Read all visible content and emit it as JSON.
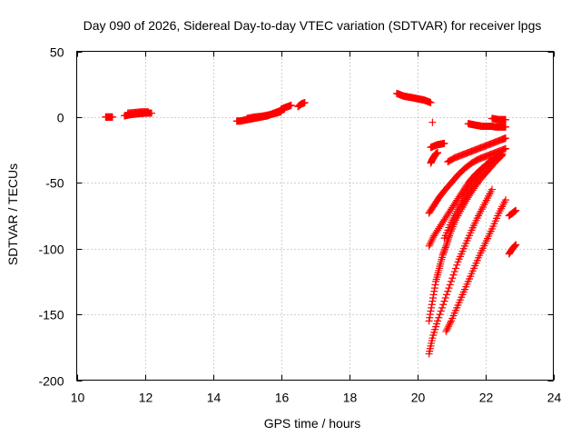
{
  "chart_data": {
    "type": "scatter",
    "title": "Day 090 of 2026, Sidereal Day-to-day VTEC variation (SDTVAR) for receiver lpgs",
    "xlabel": "GPS time / hours",
    "ylabel": "SDTVAR / TECUs",
    "xlim": [
      10,
      24
    ],
    "ylim": [
      -200,
      50
    ],
    "xticks": [
      10,
      12,
      14,
      16,
      18,
      20,
      22,
      24
    ],
    "yticks": [
      50,
      0,
      -50,
      -100,
      -150,
      -200
    ],
    "grid": true,
    "marker": "plus",
    "color": "#ff0000",
    "series": [
      {
        "name": "s1",
        "x": [
          10.85,
          10.9,
          10.95,
          11.0,
          11.05
        ],
        "y": [
          0,
          0,
          0,
          0,
          0
        ]
      },
      {
        "name": "s2",
        "x": [
          11.4,
          11.5,
          11.6,
          11.7,
          11.8,
          11.9,
          12.0,
          12.1,
          12.2
        ],
        "y": [
          1,
          1.5,
          2,
          2.3,
          2.6,
          2.8,
          3,
          3,
          3
        ]
      },
      {
        "name": "s3",
        "x": [
          11.5,
          11.7,
          11.9,
          12.1
        ],
        "y": [
          3,
          3.5,
          4,
          4
        ]
      },
      {
        "name": "s4",
        "x": [
          14.7,
          14.8,
          14.9,
          15.0,
          15.1,
          15.2,
          15.3,
          15.4,
          15.5,
          15.6,
          15.7,
          15.8,
          15.9,
          16.0,
          16.1
        ],
        "y": [
          -3,
          -3,
          -2.5,
          -2,
          -1.5,
          -1,
          -0.5,
          0,
          0.5,
          1,
          2,
          3,
          4,
          5,
          6
        ]
      },
      {
        "name": "s5",
        "x": [
          15.0,
          15.2,
          15.4,
          15.6,
          15.8,
          16.0
        ],
        "y": [
          -1,
          0,
          0.5,
          1.5,
          2.5,
          4
        ]
      },
      {
        "name": "s6",
        "x": [
          16.0,
          16.1,
          16.2,
          16.3
        ],
        "y": [
          6,
          7,
          8,
          9
        ]
      },
      {
        "name": "s7",
        "x": [
          16.5,
          16.6,
          16.7
        ],
        "y": [
          8,
          10,
          11
        ]
      },
      {
        "name": "s8",
        "x": [
          19.4,
          19.5,
          19.6,
          19.7,
          19.8,
          19.9,
          20.0,
          20.1,
          20.2,
          20.3,
          20.4
        ],
        "y": [
          18,
          17,
          16,
          15.5,
          15,
          14.5,
          14,
          13.5,
          13,
          12,
          11
        ]
      },
      {
        "name": "s9",
        "x": [
          20.45
        ],
        "y": [
          -4
        ]
      },
      {
        "name": "s10",
        "x": [
          21.5,
          21.6,
          21.7,
          21.8,
          21.9,
          22.0,
          22.1,
          22.2,
          22.3,
          22.4,
          22.5,
          22.6
        ],
        "y": [
          -5,
          -5.5,
          -6,
          -6.5,
          -7,
          -7,
          -7,
          -7,
          -7.5,
          -7.5,
          -7.5,
          -7.5
        ]
      },
      {
        "name": "s11",
        "x": [
          22.2,
          22.3,
          22.4,
          22.5,
          22.6
        ],
        "y": [
          -1,
          -1.5,
          -2,
          -2,
          -2
        ]
      },
      {
        "name": "s12",
        "x": [
          20.4,
          20.5,
          20.6,
          20.7,
          20.8
        ],
        "y": [
          -23,
          -22,
          -21,
          -20.5,
          -20
        ]
      },
      {
        "name": "s13",
        "x": [
          20.9,
          21.1,
          21.3,
          21.5,
          21.7,
          21.9,
          22.1,
          22.3,
          22.5,
          22.6
        ],
        "y": [
          -34,
          -31,
          -29,
          -27,
          -25,
          -23,
          -21,
          -19,
          -17,
          -16
        ]
      },
      {
        "name": "s14",
        "x": [
          20.4,
          20.45,
          20.5,
          20.55,
          20.6
        ],
        "y": [
          -35,
          -32,
          -30,
          -28,
          -27
        ]
      },
      {
        "name": "s15",
        "x": [
          20.35,
          20.5,
          20.65,
          20.8,
          21.0,
          21.2,
          21.4,
          21.6,
          21.8,
          22.0,
          22.2,
          22.4,
          22.6
        ],
        "y": [
          -73,
          -67,
          -61,
          -56,
          -50,
          -44,
          -39,
          -35,
          -32,
          -30,
          -28,
          -26,
          -24
        ]
      },
      {
        "name": "s16",
        "x": [
          20.35,
          20.5,
          20.7,
          20.9,
          21.1,
          21.3,
          21.5,
          21.7,
          21.9,
          22.1,
          22.3,
          22.5
        ],
        "y": [
          -98,
          -90,
          -82,
          -74,
          -66,
          -58,
          -50,
          -44,
          -39,
          -35,
          -31,
          -28
        ]
      },
      {
        "name": "s17",
        "x": [
          20.8,
          21.0,
          21.2,
          21.4,
          21.6,
          21.8,
          22.0,
          22.2
        ],
        "y": [
          -92,
          -80,
          -70,
          -60,
          -52,
          -44,
          -37,
          -32
        ]
      },
      {
        "name": "s18",
        "x": [
          20.35,
          20.45,
          20.55,
          20.65,
          20.75,
          20.85,
          20.95,
          21.1,
          21.3,
          21.5,
          21.7,
          21.9,
          22.1,
          22.3,
          22.5
        ],
        "y": [
          -155,
          -140,
          -125,
          -115,
          -105,
          -98,
          -90,
          -80,
          -70,
          -61,
          -53,
          -46,
          -40,
          -34,
          -29
        ]
      },
      {
        "name": "s19",
        "x": [
          20.35,
          20.45,
          20.6,
          20.8,
          21.0,
          21.2,
          21.4,
          21.6,
          21.8,
          22.0,
          22.2
        ],
        "y": [
          -180,
          -168,
          -155,
          -140,
          -125,
          -110,
          -98,
          -86,
          -75,
          -65,
          -55
        ]
      },
      {
        "name": "s20",
        "x": [
          20.85,
          21.0,
          21.2,
          21.4,
          21.6,
          21.8,
          22.0,
          22.2,
          22.4,
          22.6
        ],
        "y": [
          -163,
          -155,
          -143,
          -131,
          -119,
          -107,
          -96,
          -85,
          -73,
          -63
        ]
      },
      {
        "name": "s21",
        "x": [
          22.7,
          22.8,
          22.9
        ],
        "y": [
          -75,
          -73,
          -71
        ]
      },
      {
        "name": "s22",
        "x": [
          22.7,
          22.8,
          22.9
        ],
        "y": [
          -104,
          -100,
          -97
        ]
      }
    ]
  }
}
